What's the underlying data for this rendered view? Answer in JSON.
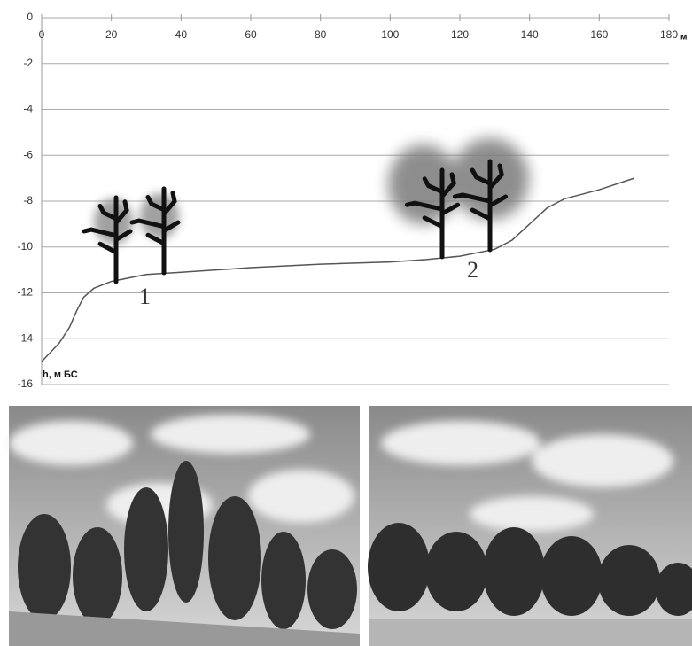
{
  "chart_data": {
    "type": "line",
    "x_unit": "м",
    "y_label": "h, м БС",
    "annotations": [
      "1",
      "2"
    ],
    "xlim": [
      0,
      180
    ],
    "xticks": [
      0,
      20,
      40,
      60,
      80,
      100,
      120,
      140,
      160,
      180
    ],
    "ylim": [
      -16,
      0
    ],
    "yticks": [
      0,
      -2,
      -4,
      -6,
      -8,
      -10,
      -12,
      -14,
      -16
    ],
    "grid": true,
    "series": [
      {
        "color": "#555555",
        "x": [
          0,
          5,
          8,
          10,
          12,
          15,
          20,
          30,
          40,
          60,
          80,
          100,
          110,
          120,
          130,
          135,
          140,
          145,
          150,
          160,
          170
        ],
        "values": [
          -15,
          -14.2,
          -13.5,
          -12.8,
          -12.2,
          -11.8,
          -11.5,
          -11.2,
          -11.1,
          -10.9,
          -10.75,
          -10.65,
          -10.55,
          -10.4,
          -10.1,
          -9.7,
          -9.0,
          -8.3,
          -7.9,
          -7.5,
          -7.0
        ]
      }
    ]
  }
}
